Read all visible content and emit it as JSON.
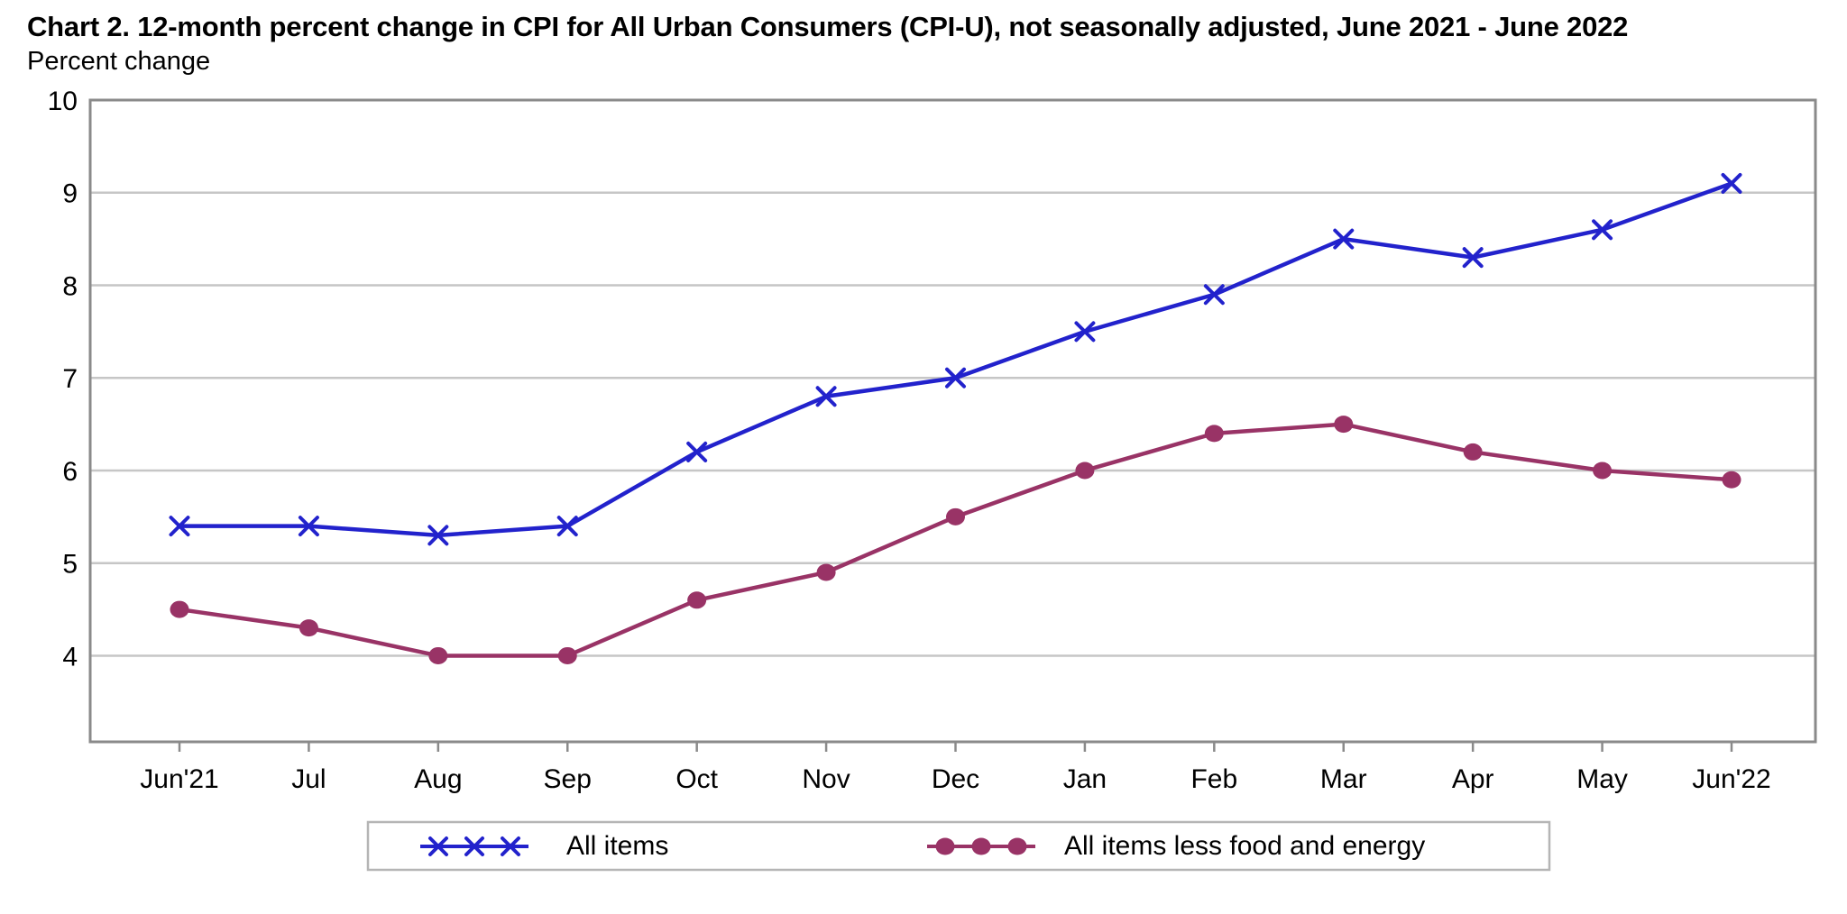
{
  "title": "Chart 2. 12-month percent change in CPI for All Urban Consumers (CPI-U), not seasonally adjusted, June 2021 - June 2022",
  "subtitle": "Percent change",
  "chart_data": {
    "type": "line",
    "title": "Chart 2. 12-month percent change in CPI for All Urban Consumers (CPI-U), not seasonally adjusted, June 2021 - June 2022",
    "ylabel": "Percent change",
    "xlabel": "",
    "categories": [
      "Jun'21",
      "Jul",
      "Aug",
      "Sep",
      "Oct",
      "Nov",
      "Dec",
      "Jan",
      "Feb",
      "Mar",
      "Apr",
      "May",
      "Jun'22"
    ],
    "series": [
      {
        "name": "All items",
        "color": "#2222CC",
        "marker": "x",
        "values": [
          5.4,
          5.4,
          5.3,
          5.4,
          6.2,
          6.8,
          7.0,
          7.5,
          7.9,
          8.5,
          8.3,
          8.6,
          9.1
        ]
      },
      {
        "name": "All items less food and energy",
        "color": "#993366",
        "marker": "circle",
        "values": [
          4.5,
          4.3,
          4.0,
          4.0,
          4.6,
          4.9,
          5.5,
          6.0,
          6.4,
          6.5,
          6.2,
          6.0,
          5.9
        ]
      }
    ],
    "y_axis": {
      "min": 3.07,
      "max": 10,
      "ticks": [
        10,
        9,
        8,
        7,
        6,
        5,
        4
      ]
    },
    "grid": "horizontal",
    "legend_position": "bottom",
    "colors": {
      "gridline": "#C6C6C6",
      "plot_border": "#8A8A8A",
      "legend_border": "#B5B5B5",
      "text": "#000000",
      "background": "#FFFFFF"
    }
  }
}
